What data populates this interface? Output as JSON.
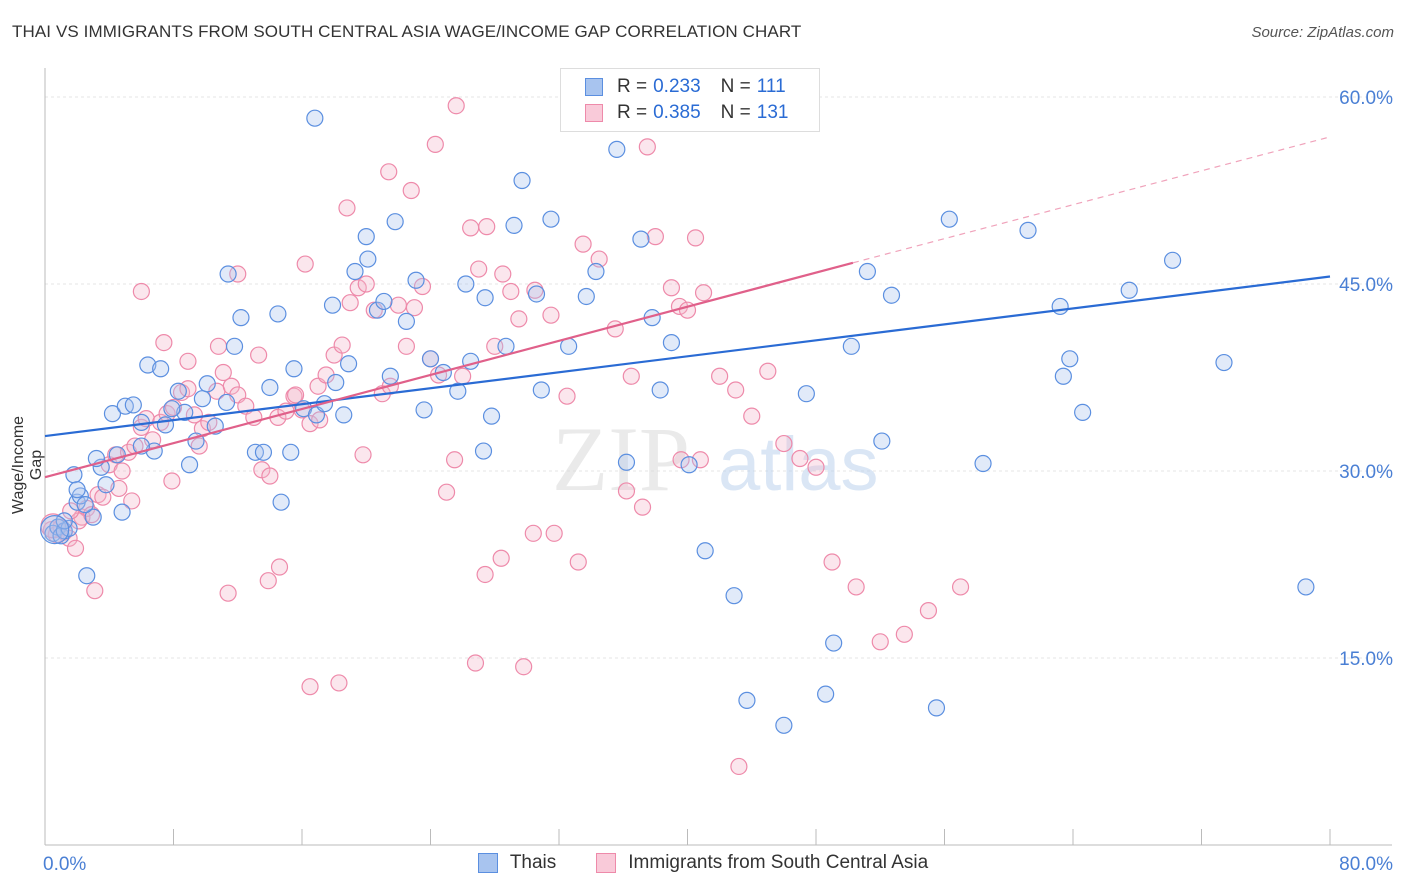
{
  "title": "THAI VS IMMIGRANTS FROM SOUTH CENTRAL ASIA WAGE/INCOME GAP CORRELATION CHART",
  "source": "Source: ZipAtlas.com",
  "watermark": {
    "zip": "ZIP",
    "atlas": "atlas"
  },
  "legend": {
    "r_label": "R =",
    "n_label": "N =",
    "thais": {
      "r": "0.233",
      "n": "111"
    },
    "immigrants": {
      "r": "0.385",
      "n": "131"
    }
  },
  "bottom_legend": {
    "thais": "Thais",
    "immigrants": "Immigrants from South Central Asia"
  },
  "colors": {
    "blue": "#2a6bd4",
    "blue_fill": "#a8c4ef",
    "pink": "#e0608a",
    "pink_fill": "#f4b6ca",
    "axis_text": "#4a7fd4"
  },
  "chart_data": {
    "type": "scatter",
    "title": "THAI VS IMMIGRANTS FROM SOUTH CENTRAL ASIA WAGE/INCOME GAP CORRELATION CHART",
    "xlabel": "",
    "ylabel": "Wage/Income Gap",
    "xlim": [
      0,
      80
    ],
    "ylim": [
      0,
      63
    ],
    "x_tick_labels": [
      "0.0%",
      "80.0%"
    ],
    "y_ticks": [
      15,
      30,
      45,
      60
    ],
    "y_tick_labels": [
      "15.0%",
      "30.0%",
      "45.0%",
      "60.0%"
    ],
    "grid": true,
    "legend_position": "top-center",
    "series": [
      {
        "name": "Thais",
        "color": "#2a6bd4",
        "trend": {
          "x0": 0,
          "y0": 32.8,
          "x1": 80,
          "y1": 45.6
        },
        "points": [
          [
            0.5,
            25.0
          ],
          [
            0.8,
            25.5
          ],
          [
            1.0,
            24.8
          ],
          [
            1.2,
            25.2
          ],
          [
            1.5,
            25.4
          ],
          [
            2.0,
            27.5
          ],
          [
            2.2,
            28.0
          ],
          [
            3.0,
            26.3
          ],
          [
            3.5,
            30.3
          ],
          [
            3.8,
            28.9
          ],
          [
            1.8,
            29.7
          ],
          [
            2.5,
            27.3
          ],
          [
            4.5,
            31.3
          ],
          [
            4.2,
            34.6
          ],
          [
            5.0,
            35.2
          ],
          [
            5.5,
            35.3
          ],
          [
            6.0,
            33.9
          ],
          [
            6.8,
            31.6
          ],
          [
            6.4,
            38.5
          ],
          [
            7.2,
            38.2
          ],
          [
            7.5,
            33.7
          ],
          [
            8.3,
            36.4
          ],
          [
            8.7,
            34.7
          ],
          [
            9.4,
            32.4
          ],
          [
            9.8,
            35.8
          ],
          [
            10.1,
            37.0
          ],
          [
            10.6,
            33.6
          ],
          [
            11.3,
            35.5
          ],
          [
            11.8,
            40.0
          ],
          [
            12.2,
            42.3
          ],
          [
            13.1,
            31.5
          ],
          [
            14.0,
            36.7
          ],
          [
            14.7,
            27.5
          ],
          [
            15.3,
            31.5
          ],
          [
            15.5,
            38.2
          ],
          [
            16.1,
            35.0
          ],
          [
            16.9,
            34.5
          ],
          [
            17.4,
            35.4
          ],
          [
            18.1,
            37.1
          ],
          [
            18.6,
            34.5
          ],
          [
            18.9,
            38.6
          ],
          [
            19.3,
            46.0
          ],
          [
            20.0,
            48.8
          ],
          [
            20.7,
            42.9
          ],
          [
            21.1,
            43.6
          ],
          [
            21.5,
            37.6
          ],
          [
            21.8,
            50.0
          ],
          [
            22.5,
            42.0
          ],
          [
            23.1,
            45.3
          ],
          [
            23.6,
            34.9
          ],
          [
            24.0,
            39.0
          ],
          [
            24.8,
            37.9
          ],
          [
            25.7,
            36.4
          ],
          [
            26.5,
            38.8
          ],
          [
            27.4,
            43.9
          ],
          [
            27.8,
            34.4
          ],
          [
            28.7,
            40.0
          ],
          [
            29.2,
            49.7
          ],
          [
            29.7,
            53.3
          ],
          [
            30.6,
            44.2
          ],
          [
            30.9,
            36.5
          ],
          [
            31.5,
            50.2
          ],
          [
            32.6,
            40.0
          ],
          [
            33.7,
            44.0
          ],
          [
            34.3,
            46.0
          ],
          [
            35.6,
            55.8
          ],
          [
            36.2,
            30.7
          ],
          [
            37.1,
            48.6
          ],
          [
            37.8,
            42.3
          ],
          [
            38.3,
            36.5
          ],
          [
            39.0,
            40.3
          ],
          [
            40.1,
            30.5
          ],
          [
            41.1,
            23.6
          ],
          [
            42.9,
            20.0
          ],
          [
            43.7,
            11.6
          ],
          [
            46.0,
            9.6
          ],
          [
            47.4,
            36.2
          ],
          [
            48.6,
            12.1
          ],
          [
            49.1,
            16.2
          ],
          [
            50.2,
            40.0
          ],
          [
            51.2,
            46.0
          ],
          [
            52.7,
            44.1
          ],
          [
            52.1,
            32.4
          ],
          [
            55.5,
            11.0
          ],
          [
            56.3,
            50.2
          ],
          [
            58.4,
            30.6
          ],
          [
            61.2,
            49.3
          ],
          [
            63.2,
            43.2
          ],
          [
            63.4,
            37.6
          ],
          [
            63.8,
            39.0
          ],
          [
            64.6,
            34.7
          ],
          [
            67.5,
            44.5
          ],
          [
            70.2,
            46.9
          ],
          [
            73.4,
            38.7
          ],
          [
            78.5,
            20.7
          ],
          [
            11.4,
            45.8
          ],
          [
            13.6,
            31.5
          ],
          [
            14.5,
            42.6
          ],
          [
            16.8,
            58.3
          ],
          [
            17.9,
            43.3
          ],
          [
            20.1,
            47.0
          ],
          [
            26.2,
            45.0
          ],
          [
            27.3,
            31.6
          ],
          [
            4.8,
            26.7
          ],
          [
            2.6,
            21.6
          ],
          [
            1.2,
            26.0
          ],
          [
            9.0,
            30.5
          ],
          [
            6.0,
            32.0
          ],
          [
            7.9,
            35.0
          ],
          [
            3.2,
            31.0
          ],
          [
            2.0,
            28.5
          ]
        ]
      },
      {
        "name": "Immigrants from South Central Asia",
        "color": "#e0608a",
        "trend": {
          "x0": 0,
          "y0": 29.5,
          "x1": 50.3,
          "y1": 46.7
        },
        "trend_dashed": {
          "x0": 50.3,
          "y0": 46.7,
          "x1": 80,
          "y1": 56.8
        },
        "points": [
          [
            0.4,
            25.3
          ],
          [
            0.7,
            24.9
          ],
          [
            1.0,
            25.5
          ],
          [
            1.2,
            25.1
          ],
          [
            1.5,
            24.6
          ],
          [
            1.9,
            23.8
          ],
          [
            2.3,
            26.3
          ],
          [
            2.6,
            27.0
          ],
          [
            2.9,
            26.5
          ],
          [
            3.3,
            28.1
          ],
          [
            3.6,
            27.9
          ],
          [
            4.0,
            30.5
          ],
          [
            4.4,
            31.3
          ],
          [
            4.8,
            30.0
          ],
          [
            5.2,
            31.5
          ],
          [
            5.6,
            32.0
          ],
          [
            6.0,
            33.5
          ],
          [
            6.3,
            34.2
          ],
          [
            6.7,
            32.5
          ],
          [
            7.2,
            33.9
          ],
          [
            7.6,
            34.6
          ],
          [
            8.0,
            35.1
          ],
          [
            8.5,
            36.3
          ],
          [
            8.9,
            36.6
          ],
          [
            9.3,
            34.5
          ],
          [
            9.8,
            33.4
          ],
          [
            10.2,
            33.9
          ],
          [
            10.7,
            36.4
          ],
          [
            11.1,
            37.9
          ],
          [
            11.6,
            36.8
          ],
          [
            12.0,
            36.1
          ],
          [
            12.5,
            35.2
          ],
          [
            13.0,
            34.3
          ],
          [
            13.5,
            30.1
          ],
          [
            14.0,
            29.6
          ],
          [
            14.5,
            34.3
          ],
          [
            15.0,
            34.8
          ],
          [
            15.5,
            36.0
          ],
          [
            16.0,
            34.9
          ],
          [
            16.5,
            33.8
          ],
          [
            17.0,
            36.8
          ],
          [
            17.5,
            37.7
          ],
          [
            18.0,
            39.3
          ],
          [
            18.5,
            40.1
          ],
          [
            19.0,
            43.5
          ],
          [
            19.5,
            44.7
          ],
          [
            20.0,
            45.0
          ],
          [
            20.5,
            42.9
          ],
          [
            21.0,
            36.2
          ],
          [
            21.5,
            36.8
          ],
          [
            22.0,
            43.3
          ],
          [
            22.5,
            40.0
          ],
          [
            23.0,
            43.1
          ],
          [
            23.5,
            44.8
          ],
          [
            24.0,
            39.0
          ],
          [
            24.5,
            37.7
          ],
          [
            25.0,
            28.3
          ],
          [
            25.5,
            30.9
          ],
          [
            26.0,
            37.6
          ],
          [
            26.5,
            49.5
          ],
          [
            27.0,
            46.2
          ],
          [
            27.5,
            49.6
          ],
          [
            28.0,
            40.0
          ],
          [
            28.5,
            45.8
          ],
          [
            29.0,
            44.4
          ],
          [
            29.5,
            42.2
          ],
          [
            30.5,
            44.5
          ],
          [
            31.5,
            42.5
          ],
          [
            32.5,
            36.0
          ],
          [
            33.5,
            48.2
          ],
          [
            34.5,
            47.0
          ],
          [
            35.5,
            41.4
          ],
          [
            36.5,
            37.6
          ],
          [
            37.5,
            56.0
          ],
          [
            38.0,
            48.8
          ],
          [
            39.0,
            44.7
          ],
          [
            39.5,
            43.2
          ],
          [
            40.0,
            42.9
          ],
          [
            40.5,
            48.7
          ],
          [
            41.0,
            44.3
          ],
          [
            42.0,
            37.6
          ],
          [
            43.0,
            36.5
          ],
          [
            44.0,
            34.4
          ],
          [
            45.0,
            38.0
          ],
          [
            46.0,
            32.2
          ],
          [
            47.0,
            31.0
          ],
          [
            48.0,
            30.3
          ],
          [
            49.0,
            22.7
          ],
          [
            50.5,
            20.7
          ],
          [
            52.0,
            16.3
          ],
          [
            53.5,
            16.9
          ],
          [
            55.0,
            18.8
          ],
          [
            57.0,
            20.7
          ],
          [
            6.0,
            44.4
          ],
          [
            7.4,
            40.3
          ],
          [
            8.9,
            38.8
          ],
          [
            10.8,
            40.0
          ],
          [
            12.0,
            45.8
          ],
          [
            13.3,
            39.3
          ],
          [
            15.6,
            36.1
          ],
          [
            16.2,
            46.6
          ],
          [
            17.1,
            34.1
          ],
          [
            18.8,
            51.1
          ],
          [
            19.8,
            31.3
          ],
          [
            21.4,
            54.0
          ],
          [
            22.8,
            52.5
          ],
          [
            24.3,
            56.2
          ],
          [
            25.6,
            59.3
          ],
          [
            26.8,
            14.6
          ],
          [
            27.4,
            21.7
          ],
          [
            28.4,
            23.0
          ],
          [
            29.8,
            14.3
          ],
          [
            30.4,
            25.0
          ],
          [
            31.7,
            25.0
          ],
          [
            33.2,
            22.7
          ],
          [
            36.2,
            28.4
          ],
          [
            37.2,
            27.1
          ],
          [
            39.6,
            30.9
          ],
          [
            40.8,
            30.9
          ],
          [
            43.2,
            6.3
          ],
          [
            3.1,
            20.4
          ],
          [
            5.4,
            27.6
          ],
          [
            7.9,
            29.2
          ],
          [
            9.6,
            32.0
          ],
          [
            11.4,
            20.2
          ],
          [
            13.9,
            21.2
          ],
          [
            14.6,
            22.3
          ],
          [
            16.5,
            12.7
          ],
          [
            18.3,
            13.0
          ],
          [
            2.1,
            26.0
          ],
          [
            4.6,
            28.6
          ],
          [
            1.6,
            26.8
          ]
        ]
      }
    ]
  }
}
